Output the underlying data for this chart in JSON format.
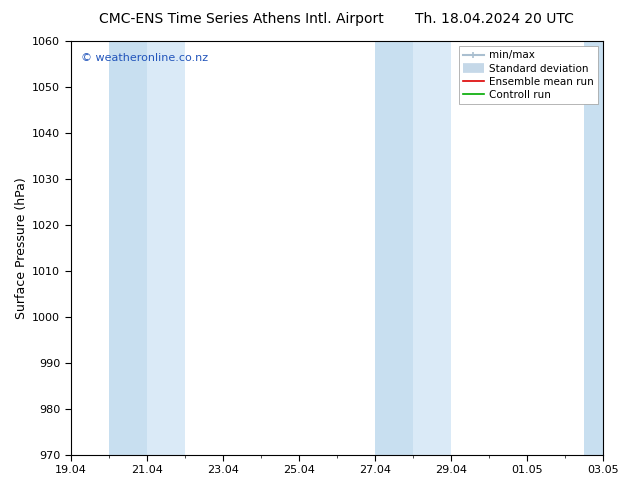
{
  "title_left": "CMC-ENS Time Series Athens Intl. Airport",
  "title_right": "Th. 18.04.2024 20 UTC",
  "ylabel": "Surface Pressure (hPa)",
  "ylim": [
    970,
    1060
  ],
  "yticks": [
    970,
    980,
    990,
    1000,
    1010,
    1020,
    1030,
    1040,
    1050,
    1060
  ],
  "xlim": [
    0,
    14
  ],
  "xtick_labels": [
    "19.04",
    "21.04",
    "23.04",
    "25.04",
    "27.04",
    "29.04",
    "01.05",
    "03.05"
  ],
  "xtick_positions": [
    0,
    2,
    4,
    6,
    8,
    10,
    12,
    14
  ],
  "shaded_bands": [
    {
      "start": 1.0,
      "end": 2.0
    },
    {
      "start": 2.0,
      "end": 3.0
    },
    {
      "start": 8.0,
      "end": 9.0
    },
    {
      "start": 9.0,
      "end": 10.0
    },
    {
      "start": 13.5,
      "end": 14.0
    }
  ],
  "band_colors": [
    "#c8dff0",
    "#daeaf7",
    "#c8dff0",
    "#daeaf7",
    "#c8dff0"
  ],
  "bg_color": "#ffffff",
  "watermark_text": "© weatheronline.co.nz",
  "watermark_color": "#2255bb",
  "legend_labels": [
    "min/max",
    "Standard deviation",
    "Ensemble mean run",
    "Controll run"
  ],
  "legend_colors": [
    "#aabfd0",
    "#c5d8e8",
    "#dd0000",
    "#00aa00"
  ],
  "title_fontsize": 10,
  "ylabel_fontsize": 9,
  "tick_fontsize": 8,
  "legend_fontsize": 7.5,
  "watermark_fontsize": 8
}
